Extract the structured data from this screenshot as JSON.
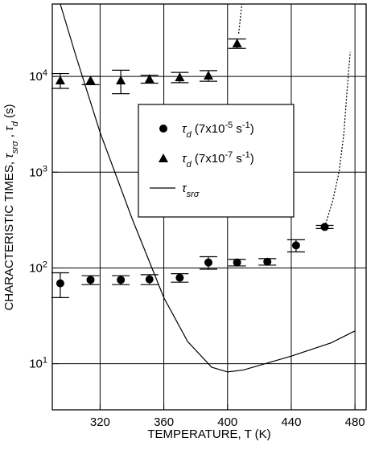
{
  "chart_data": {
    "type": "scatter",
    "xlabel": "TEMPERATURE, T (K)",
    "ylabel": [
      [
        "CHARACTERISTIC TIMES, ",
        ""
      ],
      [
        "τ",
        "i"
      ],
      [
        "srσ",
        "sub"
      ],
      [
        " , ",
        ""
      ],
      [
        "τ",
        "i"
      ],
      [
        "d",
        "sub"
      ],
      [
        " (s)",
        ""
      ]
    ],
    "xlim": [
      290,
      487
    ],
    "xticks": [
      320,
      360,
      400,
      440,
      480
    ],
    "yscale": "log",
    "ylim": [
      3.3,
      57000
    ],
    "yticks": [
      {
        "value": 10,
        "label": "10",
        "exponent": "1"
      },
      {
        "value": 100,
        "label": "10",
        "exponent": "2"
      },
      {
        "value": 1000,
        "label": "10",
        "exponent": "3"
      },
      {
        "value": 10000,
        "label": "10",
        "exponent": "4"
      }
    ],
    "grid": true,
    "legend": "center",
    "series": [
      {
        "name": [
          [
            "τ",
            "i"
          ],
          [
            "d",
            "sub"
          ],
          [
            " (7x10",
            ""
          ],
          [
            "-5",
            "sup"
          ],
          [
            " s",
            ""
          ],
          [
            "-1",
            "sup"
          ],
          [
            ")",
            ""
          ]
        ],
        "marker": "circle",
        "color": "#000000",
        "x": [
          295,
          314,
          333,
          351,
          370,
          388,
          406,
          425,
          443,
          461
        ],
        "values": [
          69,
          75,
          75,
          76,
          79,
          114,
          114,
          116,
          172,
          268
        ],
        "errors": [
          20,
          8,
          8,
          9,
          8,
          17,
          9,
          9,
          25,
          10
        ]
      },
      {
        "name": [
          [
            "τ",
            "i"
          ],
          [
            "d",
            "sub"
          ],
          [
            " (7x10",
            ""
          ],
          [
            "-7",
            "sup"
          ],
          [
            " s",
            ""
          ],
          [
            "-1",
            "sup"
          ],
          [
            ")",
            ""
          ]
        ],
        "marker": "triangle",
        "color": "#000000",
        "x": [
          295,
          314,
          333,
          351,
          370,
          388,
          406
        ],
        "values": [
          9100,
          9100,
          9100,
          9400,
          9800,
          10200,
          22100
        ],
        "errors": [
          1600,
          900,
          2500,
          900,
          1200,
          1300,
          2500
        ]
      },
      {
        "name": [
          [
            "τ",
            "i"
          ],
          [
            "srσ",
            "sub"
          ]
        ],
        "marker": "line",
        "color": "#000000",
        "x": [
          295,
          305,
          320,
          340,
          360,
          375,
          390,
          400,
          410,
          440,
          465,
          480
        ],
        "values": [
          57000,
          16000,
          2600,
          330,
          49,
          17,
          9.2,
          8.2,
          8.6,
          12,
          16.5,
          22
        ]
      }
    ],
    "extra_lines": [
      {
        "style": "dotted",
        "color": "#000000",
        "x": [
          461,
          466,
          470,
          473,
          475,
          477
        ],
        "values": [
          268,
          500,
          1000,
          2500,
          7000,
          18000
        ]
      },
      {
        "style": "dotted",
        "color": "#000000",
        "x": [
          407,
          408,
          409
        ],
        "values": [
          28000,
          40000,
          57000
        ]
      }
    ]
  }
}
